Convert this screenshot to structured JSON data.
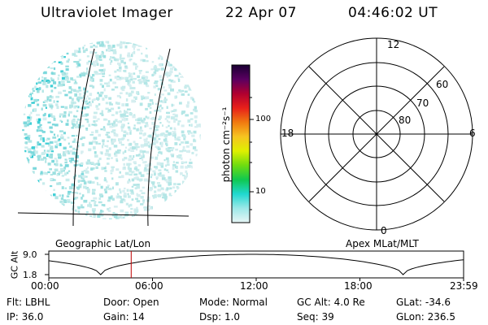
{
  "header": {
    "instrument": "Ultraviolet Imager",
    "date": "22 Apr 07",
    "time": "04:46:02 UT"
  },
  "colorbar": {
    "unit_label": "photon cm⁻²s⁻¹",
    "ticks": [
      "100",
      "10"
    ],
    "scale": "log",
    "colors": [
      "#1a0033",
      "#5a0060",
      "#b00030",
      "#e8201a",
      "#f07a10",
      "#f6c420",
      "#dff000",
      "#6fdc10",
      "#10c850",
      "#20d8d0",
      "#9ce8e8",
      "#e8f6f6"
    ]
  },
  "polar_plot": {
    "mlt_labels": {
      "top": "12",
      "left": "18",
      "right": "6",
      "bottom": "0"
    },
    "lat_labels": [
      "60",
      "70",
      "80"
    ]
  },
  "timeline": {
    "left_title": "Geographic Lat/Lon",
    "right_title": "Apex MLat/MLT",
    "y_axis_label": "GC Alt",
    "y_ticks": [
      "9.0",
      "1.8"
    ],
    "x_ticks": [
      "00:00",
      "06:00",
      "12:00",
      "18:00",
      "23:59"
    ],
    "current_time_marker": "04:46",
    "marker_color": "#c00000"
  },
  "info": {
    "row1": [
      {
        "key": "Flt:",
        "value": "LBHL"
      },
      {
        "key": "Door:",
        "value": "Open"
      },
      {
        "key": "Mode:",
        "value": "Normal"
      },
      {
        "key": "GC Alt:",
        "value": "4.0 Re"
      },
      {
        "key": "GLat:",
        "value": "-34.6"
      }
    ],
    "row2": [
      {
        "key": "IP:",
        "value": "36.0"
      },
      {
        "key": "Gain:",
        "value": "14"
      },
      {
        "key": "Dsp:",
        "value": "1.0"
      },
      {
        "key": "Seq:",
        "value": "39"
      },
      {
        "key": "GLon:",
        "value": "236.5"
      }
    ]
  }
}
